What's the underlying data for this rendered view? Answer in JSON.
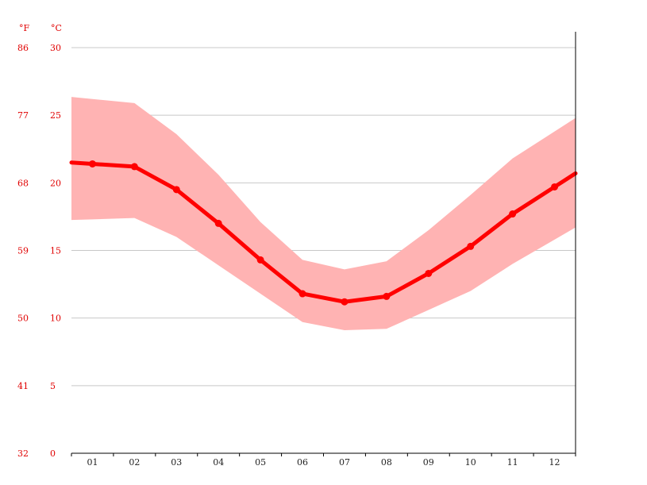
{
  "chart_data": {
    "type": "line",
    "title": "",
    "units": {
      "fahrenheit": "°F",
      "celsius": "°C"
    },
    "categories": [
      "01",
      "02",
      "03",
      "04",
      "05",
      "06",
      "07",
      "08",
      "09",
      "10",
      "11",
      "12"
    ],
    "ylim": [
      0,
      30
    ],
    "y_ticks_celsius": [
      "0",
      "5",
      "10",
      "15",
      "20",
      "25",
      "30"
    ],
    "y_ticks_fahrenheit": [
      "32",
      "41",
      "50",
      "59",
      "68",
      "77",
      "86"
    ],
    "grid": true,
    "series": [
      {
        "values": [
          21.4,
          21.2,
          19.5,
          17.0,
          14.3,
          11.8,
          11.2,
          11.6,
          13.3,
          15.3,
          17.7,
          19.7
        ]
      },
      {
        "values": [
          17.3,
          17.4,
          16.0,
          13.9,
          11.8,
          9.7,
          9.1,
          9.2,
          10.6,
          12.0,
          14.0,
          15.8
        ]
      },
      {
        "values": [
          26.2,
          25.9,
          23.6,
          20.6,
          17.1,
          14.3,
          13.6,
          14.2,
          16.5,
          19.1,
          21.8,
          23.8
        ]
      }
    ],
    "colors": {
      "mean_line": "#ff0000",
      "range_band": "#ffb3b3",
      "grid": "#c8c8c8",
      "axis_labels": "#e00000",
      "x_labels": "#222222"
    }
  }
}
